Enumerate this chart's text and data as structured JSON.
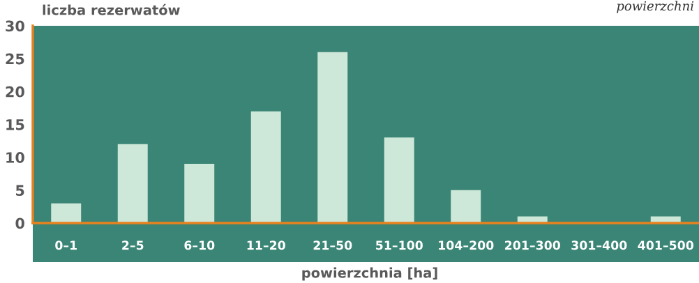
{
  "chart_data": {
    "type": "bar",
    "ylabel": "liczba rezerwatów",
    "xlabel": "powierzchnia [ha]",
    "annotations": [
      "powierzchni"
    ],
    "categories": [
      "0–1",
      "2–5",
      "6–10",
      "11–20",
      "21–50",
      "51–100",
      "104–200",
      "201–300",
      "301–400",
      "401–500"
    ],
    "values": [
      3,
      12,
      9,
      17,
      26,
      13,
      5,
      1,
      0,
      1
    ],
    "color": "#cde8d8",
    "ylim": [
      0,
      30
    ],
    "yticks": [
      0,
      5,
      10,
      15,
      20,
      25,
      30
    ],
    "grid": false,
    "legend": false
  }
}
